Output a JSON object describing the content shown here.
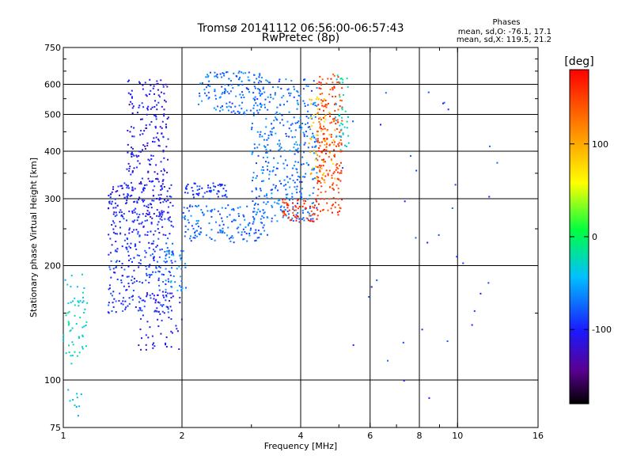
{
  "chart_data": {
    "type": "scatter",
    "title": "Tromsø 20141112 06:56:00-06:57:43",
    "subtitle": "RwPretec (8p)",
    "xlabel": "Frequency [MHz]",
    "ylabel": "Stationary phase Virtual Height [km]",
    "x_scale": "log",
    "y_scale": "log",
    "xlim": [
      1,
      16
    ],
    "ylim": [
      75,
      750
    ],
    "x_ticks": [
      1,
      2,
      4,
      6,
      8,
      10,
      16
    ],
    "x_tick_labels": [
      "1",
      "2",
      "4",
      "6",
      "8",
      "10",
      "16"
    ],
    "y_ticks": [
      75,
      100,
      200,
      300,
      400,
      500,
      600,
      750
    ],
    "y_tick_labels": [
      "75",
      "100",
      "200",
      "300",
      "400",
      "500",
      "600",
      "750"
    ],
    "x_gridlines": [
      2,
      4,
      6,
      8,
      10
    ],
    "y_gridlines": [
      100,
      200,
      300,
      400,
      500,
      600
    ],
    "extra_minor_x_ticks": [
      3,
      5,
      7,
      9
    ],
    "extra_minor_y_ticks": [
      150,
      250,
      350,
      450,
      550,
      650,
      700
    ],
    "phases_box": {
      "title": "Phases",
      "line1": "mean, sd,O: -76.1, 17.1",
      "line2": "mean, sd,X: 119.5, 21.2"
    },
    "colorbar": {
      "label": "[deg]",
      "range": [
        -180,
        180
      ],
      "ticks": [
        100,
        0,
        -100
      ],
      "tick_labels": [
        "100",
        "0",
        "-100"
      ],
      "colormap": "rainbow (black→purple→blue→cyan→green→yellow→orange→red)"
    },
    "point_clusters": [
      {
        "name": "",
        "x_range": [
          1.0,
          1.15
        ],
        "y_range": [
          110,
          190
        ],
        "phase": -30,
        "count": 60
      },
      {
        "name": "",
        "x_range": [
          1.0,
          1.12
        ],
        "y_range": [
          80,
          100
        ],
        "phase": -40,
        "count": 10
      },
      {
        "name": "",
        "x_range": [
          1.3,
          1.9
        ],
        "y_range": [
          150,
          240
        ],
        "phase": -90,
        "count": 220
      },
      {
        "name": "",
        "x_range": [
          1.3,
          1.9
        ],
        "y_range": [
          240,
          330
        ],
        "phase": -100,
        "count": 220
      },
      {
        "name": "",
        "x_range": [
          1.45,
          1.85
        ],
        "y_range": [
          330,
          620
        ],
        "phase": -105,
        "count": 180
      },
      {
        "name": "",
        "x_range": [
          1.55,
          2.0
        ],
        "y_range": [
          120,
          170
        ],
        "phase": -110,
        "count": 60
      },
      {
        "name": "",
        "x_range": [
          1.8,
          2.05
        ],
        "y_range": [
          170,
          220
        ],
        "phase": -60,
        "count": 40
      },
      {
        "name": "",
        "x_range": [
          2.0,
          2.6
        ],
        "y_range": [
          300,
          330
        ],
        "phase": -90,
        "count": 60
      },
      {
        "name": "",
        "x_range": [
          2.2,
          3.2
        ],
        "y_range": [
          500,
          650
        ],
        "phase": -70,
        "count": 140
      },
      {
        "name": "",
        "x_range": [
          2.0,
          3.3
        ],
        "y_range": [
          230,
          290
        ],
        "phase": -75,
        "count": 150
      },
      {
        "name": "",
        "x_range": [
          3.0,
          4.4
        ],
        "y_range": [
          260,
          620
        ],
        "phase": -70,
        "count": 400
      },
      {
        "name": "",
        "x_range": [
          3.6,
          4.4
        ],
        "y_range": [
          260,
          300
        ],
        "phase": 160,
        "count": 60
      },
      {
        "name": "",
        "x_range": [
          4.4,
          5.1
        ],
        "y_range": [
          270,
          640
        ],
        "phase": 150,
        "count": 220
      },
      {
        "name": "",
        "x_range": [
          4.2,
          4.9
        ],
        "y_range": [
          330,
          560
        ],
        "phase": 90,
        "count": 60
      },
      {
        "name": "",
        "x_range": [
          4.9,
          5.3
        ],
        "y_range": [
          400,
          640
        ],
        "phase": -30,
        "count": 40
      },
      {
        "name": "",
        "x_range": [
          5.0,
          13.0
        ],
        "y_range": [
          80,
          600
        ],
        "phase": -90,
        "count": 35
      }
    ]
  }
}
